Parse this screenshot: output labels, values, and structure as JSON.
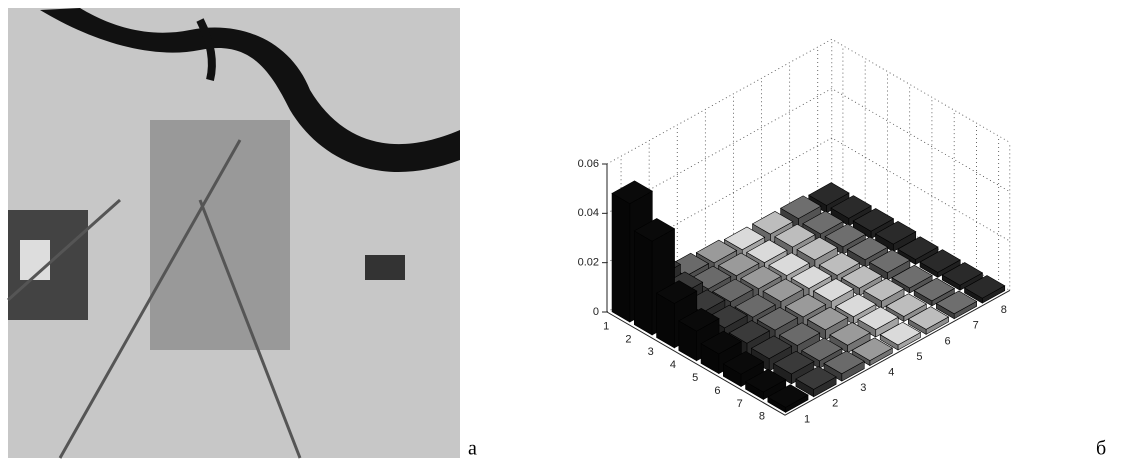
{
  "panel_labels": [
    "а",
    "б"
  ],
  "chart_data": {
    "type": "bar3d",
    "i_categories": [
      1,
      2,
      3,
      4,
      5,
      6,
      7,
      8
    ],
    "j_categories": [
      1,
      2,
      3,
      4,
      5,
      6,
      7,
      8
    ],
    "zlim": [
      0,
      0.06
    ],
    "zticks": [
      0,
      0.02,
      0.04,
      0.06
    ],
    "grid": true,
    "colors": [
      "#0a0a0a",
      "#3a3a3a",
      "#6a6a6a",
      "#9a9a9a",
      "#dadada",
      "#bdbdbd",
      "#6e6e6e",
      "#2a2a2a"
    ],
    "values": [
      [
        0.048,
        0.012,
        0.006,
        0.005,
        0.004,
        0.004,
        0.004,
        0.003
      ],
      [
        0.038,
        0.01,
        0.006,
        0.005,
        0.004,
        0.004,
        0.003,
        0.003
      ],
      [
        0.018,
        0.008,
        0.006,
        0.005,
        0.004,
        0.004,
        0.003,
        0.003
      ],
      [
        0.012,
        0.007,
        0.005,
        0.005,
        0.004,
        0.003,
        0.003,
        0.003
      ],
      [
        0.008,
        0.006,
        0.005,
        0.004,
        0.004,
        0.003,
        0.003,
        0.002
      ],
      [
        0.005,
        0.005,
        0.004,
        0.004,
        0.003,
        0.003,
        0.002,
        0.002
      ],
      [
        0.003,
        0.004,
        0.003,
        0.003,
        0.003,
        0.002,
        0.002,
        0.002
      ],
      [
        0.002,
        0.003,
        0.003,
        0.002,
        0.002,
        0.002,
        0.002,
        0.002
      ]
    ]
  }
}
